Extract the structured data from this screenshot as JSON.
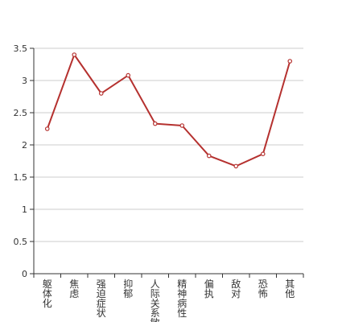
{
  "chart_data": {
    "type": "line",
    "title": "",
    "xlabel": "",
    "ylabel": "",
    "categories": [
      "躯体化",
      "焦虑",
      "强迫症状",
      "抑郁",
      "人际关系敏感",
      "精神病性",
      "偏执",
      "敌对",
      "恐怖",
      "其他"
    ],
    "series": [
      {
        "values": [
          2.25,
          3.4,
          2.8,
          3.08,
          2.33,
          2.3,
          1.83,
          1.67,
          1.86,
          3.3
        ]
      }
    ],
    "ylim": [
      0,
      3.5
    ],
    "yticks": [
      "0",
      "0.5",
      "1",
      "1.5",
      "2",
      "2.5",
      "3",
      "3.5"
    ],
    "grid": true,
    "legend": "none",
    "colors": {
      "line": "#b5312f",
      "grid": "#cccccc",
      "axis": "#333333",
      "marker_fill": "#ffffff"
    }
  }
}
